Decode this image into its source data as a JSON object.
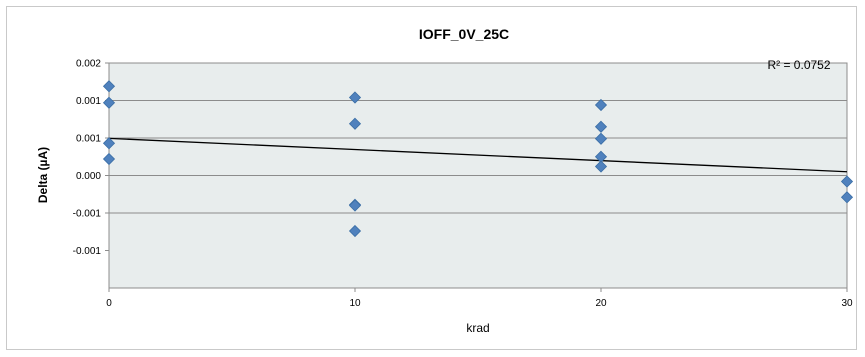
{
  "chart_data": {
    "type": "scatter",
    "title": "IOFF_0V_25C",
    "xlabel": "krad",
    "ylabel": "Delta (µA)",
    "xlim": [
      0,
      30
    ],
    "ylim": [
      -0.0015,
      0.0015
    ],
    "x_ticks": [
      0,
      10,
      20,
      30
    ],
    "x_tick_labels": [
      "0",
      "10",
      "20",
      "30"
    ],
    "y_ticks": [
      0.0015,
      0.001,
      0.0005,
      0.0,
      -0.0005,
      -0.001
    ],
    "y_tick_labels": [
      "0.002",
      "0.001",
      "0.001",
      "0.000",
      "-0.001",
      "-0.001"
    ],
    "grid": true,
    "series": [
      {
        "color": "#4f81bd",
        "marker": "diamond",
        "points": [
          {
            "x": 0,
            "y": 0.00119
          },
          {
            "x": 0,
            "y": 0.00097
          },
          {
            "x": 0,
            "y": 0.00043
          },
          {
            "x": 0,
            "y": 0.00022
          },
          {
            "x": 10,
            "y": 0.00104
          },
          {
            "x": 10,
            "y": 0.00069
          },
          {
            "x": 10,
            "y": -0.00039
          },
          {
            "x": 10,
            "y": -0.0004
          },
          {
            "x": 10,
            "y": -0.00074
          },
          {
            "x": 20,
            "y": 0.00094
          },
          {
            "x": 20,
            "y": 0.00065
          },
          {
            "x": 20,
            "y": 0.00049
          },
          {
            "x": 20,
            "y": 0.00025
          },
          {
            "x": 20,
            "y": 0.00012
          },
          {
            "x": 30,
            "y": -8e-05
          },
          {
            "x": 30,
            "y": -0.00029
          }
        ]
      }
    ],
    "trendline": {
      "type": "linear",
      "color": "#000000",
      "start": {
        "x": 0,
        "y": 0.000495
      },
      "end": {
        "x": 30,
        "y": 5e-05
      },
      "label": "R² = 0.0752"
    }
  }
}
